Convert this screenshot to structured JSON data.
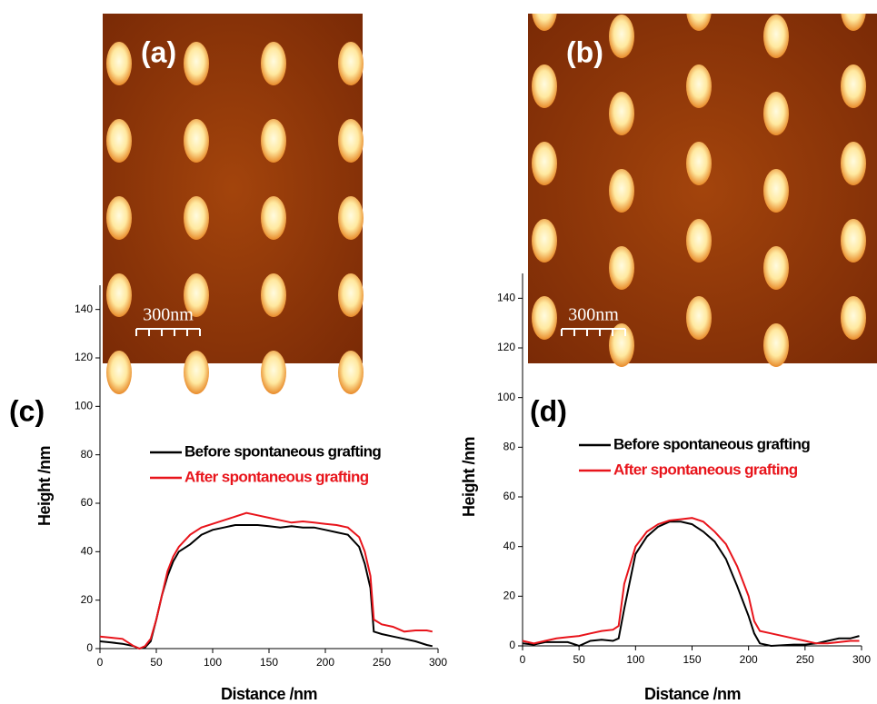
{
  "chart_data": [
    {
      "type": "line",
      "image_label": "(a)",
      "scale_bar": "300nm",
      "panel_label": "(c)",
      "x_label": "Distance /nm",
      "y_label": "Height /nm",
      "xlim": [
        0,
        300
      ],
      "xticks": [
        0,
        50,
        100,
        150,
        200,
        250,
        300
      ],
      "ylim": [
        0,
        150
      ],
      "yticks": [
        0,
        20,
        40,
        60,
        80,
        100,
        120,
        140
      ],
      "x": [
        0,
        10,
        20,
        30,
        35,
        40,
        45,
        50,
        55,
        60,
        65,
        70,
        80,
        90,
        100,
        110,
        120,
        130,
        140,
        150,
        160,
        170,
        180,
        190,
        200,
        210,
        220,
        230,
        235,
        240,
        243,
        250,
        260,
        270,
        280,
        290,
        295
      ],
      "series": [
        {
          "name": "Before spontaneous grafting",
          "color": "#000000",
          "values": [
            3,
            2.5,
            2,
            1,
            0,
            0.5,
            3,
            12,
            22,
            30,
            36,
            40,
            43,
            47,
            49,
            50,
            51,
            51,
            51,
            50.5,
            50,
            50.5,
            50,
            50,
            49,
            48,
            47,
            42,
            35,
            25,
            7,
            6,
            5,
            4,
            3,
            1.5,
            1
          ]
        },
        {
          "name": "After spontaneous grafting",
          "color": "#e8141b",
          "values": [
            5,
            4.5,
            4,
            1,
            0,
            1,
            4,
            12,
            22,
            32,
            38,
            42,
            47,
            50,
            51.5,
            53,
            54.5,
            56,
            55,
            54,
            53,
            52,
            52.5,
            52,
            51.5,
            51,
            50,
            46,
            40,
            30,
            12,
            10,
            9,
            7,
            7.5,
            7.5,
            7
          ]
        }
      ]
    },
    {
      "type": "line",
      "image_label": "(b)",
      "scale_bar": "300nm",
      "panel_label": "(d)",
      "x_label": "Distance /nm",
      "y_label": "Height /nm",
      "xlim": [
        0,
        300
      ],
      "xticks": [
        0,
        50,
        100,
        150,
        200,
        250,
        300
      ],
      "ylim": [
        0,
        150
      ],
      "yticks": [
        0,
        20,
        40,
        60,
        80,
        100,
        120,
        140
      ],
      "x": [
        0,
        10,
        20,
        30,
        40,
        50,
        60,
        70,
        80,
        85,
        90,
        100,
        110,
        120,
        130,
        140,
        150,
        160,
        170,
        180,
        190,
        200,
        205,
        210,
        220,
        240,
        250,
        260,
        270,
        280,
        290,
        298
      ],
      "series": [
        {
          "name": "Before spontaneous grafting",
          "color": "#000000",
          "values": [
            1,
            0.5,
            1.5,
            1.5,
            1.5,
            0,
            2,
            2.5,
            2,
            3,
            15,
            37,
            44,
            48,
            50,
            50,
            49,
            46,
            42,
            35,
            24,
            12,
            5,
            1,
            0,
            0.5,
            0.5,
            1,
            2,
            3,
            3,
            4
          ]
        },
        {
          "name": "After spontaneous grafting",
          "color": "#e8141b",
          "values": [
            2,
            1,
            2,
            3,
            3.5,
            4,
            5,
            6,
            6.5,
            8,
            25,
            40,
            46,
            49,
            50.5,
            51,
            51.5,
            50,
            46,
            41,
            32,
            20,
            10,
            6,
            5,
            3,
            2,
            1,
            1,
            1.5,
            2,
            2
          ]
        }
      ]
    }
  ]
}
